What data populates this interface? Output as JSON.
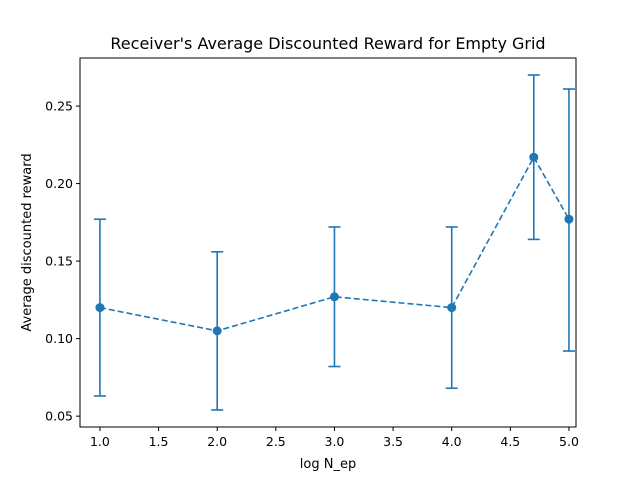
{
  "chart_data": {
    "type": "line",
    "title": "Receiver's Average Discounted Reward for Empty Grid",
    "xlabel": "log N_ep",
    "ylabel": "Average discounted reward",
    "xlim": [
      0.83,
      5.06
    ],
    "ylim": [
      0.043,
      0.281
    ],
    "x_ticks": [
      1.0,
      1.5,
      2.0,
      2.5,
      3.0,
      3.5,
      4.0,
      4.5,
      5.0
    ],
    "x_tick_labels": [
      "1.0",
      "1.5",
      "2.0",
      "2.5",
      "3.0",
      "3.5",
      "4.0",
      "4.5",
      "5.0"
    ],
    "y_ticks": [
      0.05,
      0.1,
      0.15,
      0.2,
      0.25
    ],
    "y_tick_labels": [
      "0.05",
      "0.10",
      "0.15",
      "0.20",
      "0.25"
    ],
    "grid": false,
    "series": [
      {
        "color": "#1f77b4",
        "line_style": "dashed",
        "marker": "circle",
        "x": [
          1.0,
          2.0,
          3.0,
          4.0,
          4.7,
          5.0
        ],
        "y": [
          0.12,
          0.105,
          0.127,
          0.12,
          0.217,
          0.177
        ],
        "error_low": [
          0.063,
          0.054,
          0.082,
          0.068,
          0.164,
          0.092
        ],
        "error_high": [
          0.177,
          0.156,
          0.172,
          0.172,
          0.27,
          0.261
        ]
      }
    ]
  }
}
